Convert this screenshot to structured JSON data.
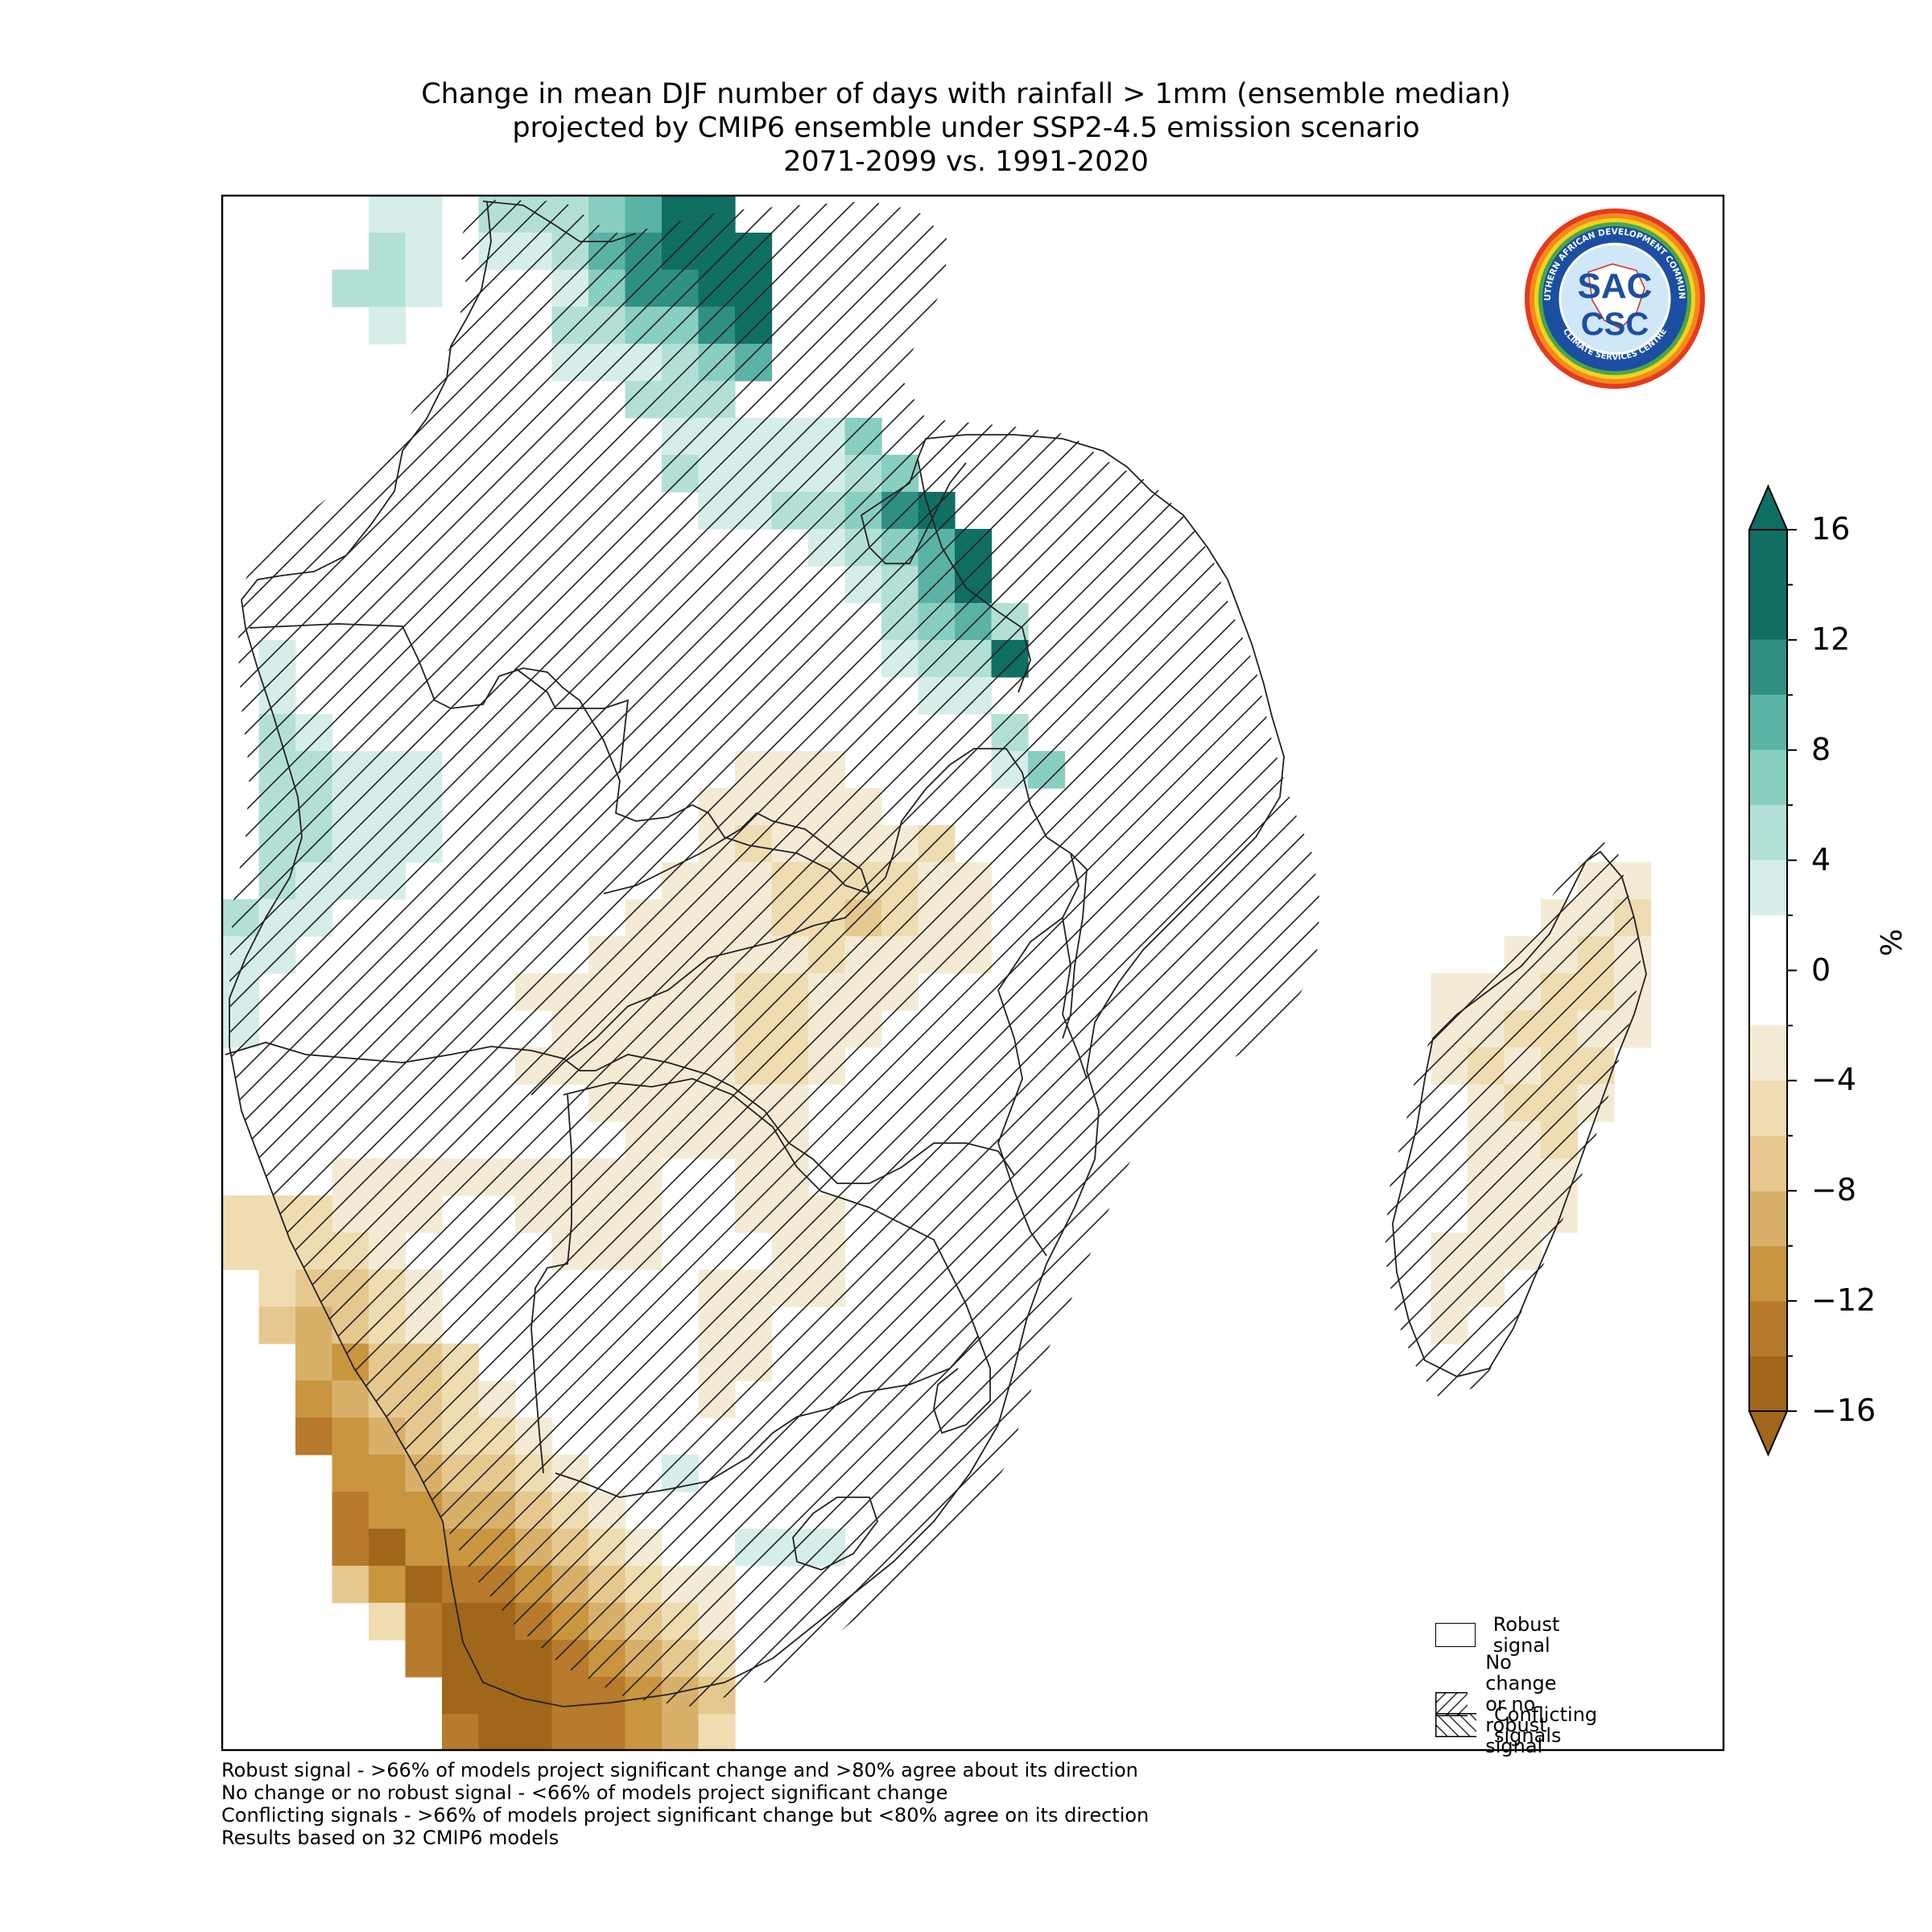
{
  "title": {
    "line1": "Change in mean DJF number of days with rainfall > 1mm (ensemble median)",
    "line2": "projected by CMIP6 ensemble under SSP2-4.5 emission scenario",
    "line3": "2071-2099 vs. 1991-2020"
  },
  "colorbar": {
    "unit": "%",
    "ticks": [
      "16",
      "12",
      "8",
      "4",
      "0",
      "−4",
      "−8",
      "−12",
      "−16"
    ],
    "colors": [
      "#a0661a",
      "#b87a2c",
      "#c9953f",
      "#d8b06a",
      "#e6c88f",
      "#efdcb1",
      "#f5ebd5",
      "#ffffff",
      "#d6eee9",
      "#b3e0d6",
      "#88cfc1",
      "#5bb3a5",
      "#2f8f83",
      "#116e63"
    ]
  },
  "legend": {
    "items": [
      {
        "label": "Robust signal",
        "pattern": "none"
      },
      {
        "label_line1": "No change",
        "label_line2": "or no robust signal",
        "pattern": "forward"
      },
      {
        "label": "Conflicting signals",
        "pattern": "back"
      }
    ]
  },
  "logo": {
    "main_text": "SAC",
    "sub_text": "CSC",
    "ring_top": "SOUTHERN AFRICAN DEVELOPMENT COMMUNITY",
    "ring_bottom": "CLIMATE SERVICES CENTRE"
  },
  "footnotes": [
    "Robust signal - >66% of models project significant change and >80% agree about its direction",
    "No change or no robust signal - <66% of models project significant change",
    "Conflicting signals - >66% of models project significant change but <80% agree on its direction",
    "Results based on 32 CMIP6 models"
  ]
}
